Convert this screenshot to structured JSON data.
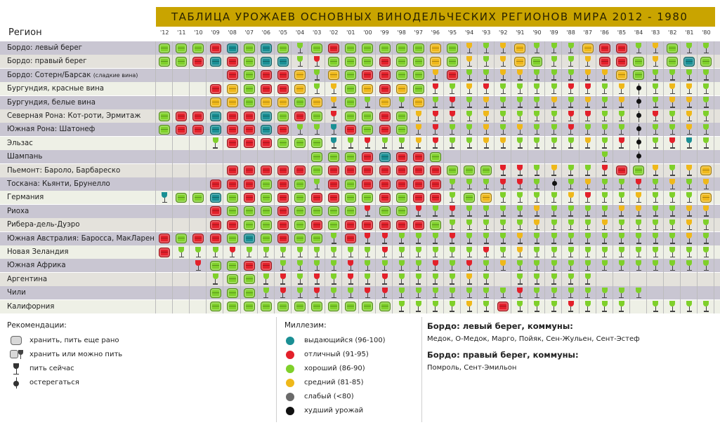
{
  "title": "ТАБЛИЦА УРОЖАЕВ ОСНОВНЫХ ВИНОДЕЛЬЧЕСКИХ РЕГИОНОВ МИРА 2012 - 1980",
  "region_header": "Регион",
  "years": [
    "'12",
    "'11",
    "'10",
    "'09",
    "'08",
    "'07",
    "'06",
    "'05",
    "'04",
    "'03",
    "'02",
    "'01",
    "'00",
    "'99",
    "'98",
    "'97",
    "'96",
    "'95",
    "'94",
    "'93",
    "'92",
    "'91",
    "'90",
    "'89",
    "'88",
    "'87",
    "'86",
    "'85",
    "'84",
    "'83",
    "'82",
    "'81",
    "'80"
  ],
  "regions": [
    {
      "name": "Бордо: левый берег",
      "small": ""
    },
    {
      "name": "Бордо: правый берег",
      "small": ""
    },
    {
      "name": "Бордо: Сотерн/Барсак ",
      "small": "(сладкие вина)"
    },
    {
      "name": "Бургундия, красные вина",
      "small": ""
    },
    {
      "name": "Бургундия, белые вина",
      "small": ""
    },
    {
      "name": "Северная Рона: Кот-роти, Эрмитаж",
      "small": ""
    },
    {
      "name": "Южная Рона: Шатонеф",
      "small": ""
    },
    {
      "name": "Эльзас",
      "small": ""
    },
    {
      "name": "Шампань",
      "small": ""
    },
    {
      "name": "Пьемонт: Бароло, Барбареско",
      "small": ""
    },
    {
      "name": "Тоскана: Кьянти, Брунелло",
      "small": ""
    },
    {
      "name": "Германия",
      "small": ""
    },
    {
      "name": "Риоха",
      "small": ""
    },
    {
      "name": "Рибера-дель-Дуэро",
      "small": ""
    },
    {
      "name": "Южная Австралия: Баросса, МакЛарен",
      "small": ""
    },
    {
      "name": "Новая Зеландия",
      "small": ""
    },
    {
      "name": "Южная Африка",
      "small": ""
    },
    {
      "name": "Аргентина",
      "small": ""
    },
    {
      "name": "Чили",
      "small": ""
    },
    {
      "name": "Калифорния",
      "small": ""
    }
  ],
  "cells": [
    "BBBBBBBBGBBBBBBBBBGGGBGGGBBBGGBGG",
    "BBBBBBBBGGBBBBBBBBGGGBBGGGBBBGBBB",
    "....BBBBBGBBBBBBGBGGGGGGGGGBBGGGG",
    "...BBBBBBGGBBBBBGGGGGGGGGGGGBGGGG",
    "...BBBBBBBGBGBGBGGGGGGGGGGGGBGGGG",
    "BBBBBBBBBBGBBBBGGGGGGGGGGGGGBGGGG",
    "BBBBBBBBGGGBBBBGGGGGGGGGGGGGBGGGG",
    "...GBBBBBBGGGGGGGGGGGGGGGGGGBGGGG",
    ".........BBBBBBBB.........G.B....",
    "....BBBBBBBBBBBBBBBBGGGGGGGBBGGGB",
    "...BBBBBBGBBBBBBBGGGGGGBGGGGGGGGG",
    "GBBBBBBBBBBBBBBBBGBBGGGGGGGGGGGGB",
    "...BBBBBBBBBGBBGGGGGGGGGGGGGGGGGG",
    "...BBBBBBBBBBBBBBGGGGGGGGGGGGGGGG",
    "BBBBBBBBBBGBGGGGGGGGGGGGGGGGGGGGG",
    "BGGGGGGGGGGGGGGGGGGGGGGGGGGGGGGGG",
    "..GBBBBGGGGGGGGGGGGGGGGGGGGGGGGGG",
    "...GBBGGGGGGGGGGGGGG.GGGGG.......",
    "...BBBGGGGGGGGGGGGGGGGGGGGGGG....",
    "...BBBBBBBBBBBGGGGGGBGGGGGGG.GGGG"
  ],
  "colors": [
    "GGGRTGTGGGRGGGGGYGYGYYGGGYRRGYGGG",
    "GGRTRGTTGRGGGRGGYGYGYYGGGYRRGYGTG",
    "....RGRRYGYGRRGGYRGGYYGGGYYYGGGGG",
    "...RYGRRYGYGYRYGRGYRGGGGRRGYKGYYG",
    "...YYGYYGYYGGYGYGRGYGGGYGYGYKGYYG",
    "GRRTRRTGRGRGGRGYRRGYGGGGRRGGKRGYG",
    "GRRTRRTRGGTRGRGYRGGYGYGGRGGGKGGYG",
    "...GRRRGGGTGRGGYRGGYYGGGGYGRKGRTG",
    ".........GGGRTRRG.........G.K....",
    "....RRRRRGRRRRRRRGGGRRGYGGRRGYGYY",
    "...RRRGRGGRGRRRRRGGGRRGKGYGGRGYGY",
    "TGGTGRGRGRRGGRGRRGGYGGGGYRGGYGGGY",
    "...RGGGRGGGGRGGRGRGGGGYGGGGYYGGYY",
    "...RRGGRGRGRRRRRGGGGGGYGGGYGGGGYG",
    "RGRRGTGRGGGRRRGGGRGGGYGGGGGGGGGYG",
    "RGGGRGGGGGGGGRGGGGGRGYGGGGGGGGGGG",
    "..RGGRRGGGGRGGGGRGRGYGGGGGGGGGGGG",
    "...GGGGRGRGRGRGGGGYG.GGGGG.......",
    "...GGGGRGRGGRRGGGGGGGRGGGGGGG....",
    "...GGGGGGGGGGGGGGGYGRGGGRGGG.GGGG"
  ],
  "palette": {
    "T": "#1a8f94",
    "R": "#e3202a",
    "G": "#7fd02a",
    "Y": "#efb81a",
    "K": "#111111",
    "P": "#d04a7a",
    "W": "#6a6a6a"
  },
  "legend": {
    "recommendations_title": "Рекомендации:",
    "items": [
      {
        "label": "хранить, пить еще рано",
        "icon": "barrel"
      },
      {
        "label": "хранить или можно пить",
        "icon": "barrel-glass"
      },
      {
        "label": "пить сейчас",
        "icon": "glass"
      },
      {
        "label": "остерегаться",
        "icon": "bottle"
      }
    ]
  },
  "vintage": {
    "title": "Миллезим:",
    "items": [
      {
        "label": "выдающийся (96-100)",
        "color": "#1a8f94"
      },
      {
        "label": "отличный (91-95)",
        "color": "#e3202a"
      },
      {
        "label": "хороший (86-90)",
        "color": "#7fd02a"
      },
      {
        "label": "средний (81-85)",
        "color": "#efb81a"
      },
      {
        "label": "слабый (<80)",
        "color": "#6a6a6a"
      },
      {
        "label": "худший урожай",
        "color": "#111111"
      }
    ]
  },
  "communes": {
    "left_title": "Бордо: левый берег, коммуны:",
    "left_text": "Медок, О-Медок, Марго, Пойяк, Сен-Жульен, Сент-Эстеф",
    "right_title": "Бордо: правый берег, коммуны:",
    "right_text": "Помроль, Сент-Эмильон"
  }
}
